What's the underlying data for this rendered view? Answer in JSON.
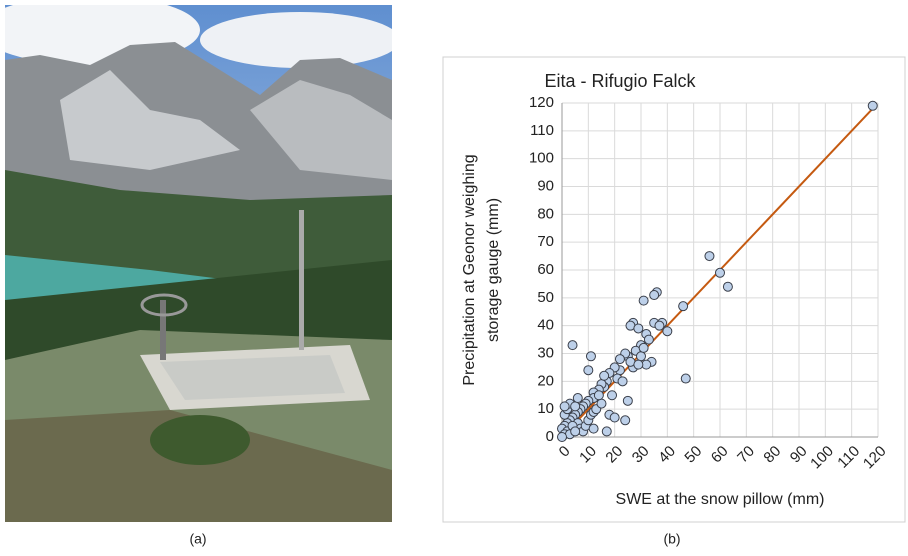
{
  "captions": [
    "(a)",
    "(b)"
  ],
  "chart_data": {
    "type": "scatter",
    "title": "Eita - Rifugio Falck",
    "xlabel": "SWE at the snow pillow (mm)",
    "ylabel": [
      "Precipitation at Geonor weighing",
      "storage gauge  (mm)"
    ],
    "x": [
      118,
      56,
      60,
      63,
      46,
      47,
      36,
      35,
      31,
      27,
      26,
      29,
      32,
      35,
      38,
      37,
      40,
      33,
      30,
      28,
      25,
      24,
      30,
      34,
      32,
      27,
      22,
      20,
      18,
      21,
      23,
      17,
      16,
      15,
      14,
      12,
      11,
      10,
      12,
      10,
      9,
      8,
      7,
      6,
      5,
      4,
      3,
      2,
      1,
      0,
      1,
      2,
      3,
      4,
      5,
      6,
      7,
      8,
      9,
      10,
      11,
      12,
      13,
      15,
      16,
      18,
      20,
      24,
      25,
      17,
      19,
      14,
      2,
      1,
      3,
      0,
      1,
      4,
      5,
      6,
      22,
      26,
      29,
      31,
      12
    ],
    "y": [
      119,
      65,
      59,
      54,
      47,
      21,
      52,
      51,
      49,
      41,
      40,
      39,
      37,
      41,
      41,
      40,
      38,
      35,
      33,
      31,
      29,
      30,
      29,
      27,
      26,
      25,
      24,
      25,
      23,
      21,
      20,
      20,
      18,
      19,
      17,
      16,
      29,
      24,
      14,
      13,
      12,
      11,
      10,
      9,
      8,
      7,
      6,
      5,
      4,
      3,
      8,
      10,
      12,
      33,
      11,
      5,
      3,
      2,
      4,
      6,
      8,
      9,
      10,
      12,
      22,
      8,
      7,
      6,
      13,
      2,
      15,
      15,
      2,
      1,
      1,
      0,
      11,
      4,
      2,
      14,
      28,
      27,
      26,
      32,
      3
    ],
    "color": "#bdd0e9",
    "fit_line": {
      "x": [
        0,
        118
      ],
      "y": [
        0,
        118
      ],
      "color": "#c55a11"
    },
    "xlim": [
      0,
      120
    ],
    "ylim": [
      0,
      120
    ],
    "xticks": [
      0,
      10,
      20,
      30,
      40,
      50,
      60,
      70,
      80,
      90,
      100,
      110,
      120
    ],
    "yticks": [
      0,
      10,
      20,
      30,
      40,
      50,
      60,
      70,
      80,
      90,
      100,
      110,
      120
    ],
    "grid": true
  }
}
